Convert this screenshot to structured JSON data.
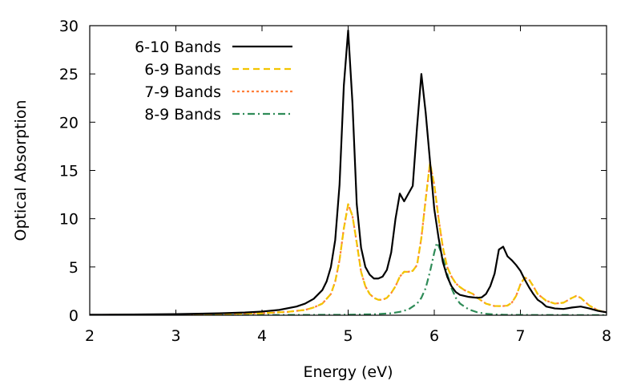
{
  "chart_data": {
    "type": "line",
    "xlabel": "Energy (eV)",
    "ylabel": "Optical Absorption",
    "xlim": [
      2,
      8
    ],
    "ylim": [
      0,
      30
    ],
    "xticks": [
      2,
      3,
      4,
      5,
      6,
      7,
      8
    ],
    "yticks": [
      0,
      5,
      10,
      15,
      20,
      25,
      30
    ],
    "grid": false,
    "legend": "top-left",
    "series": [
      {
        "name": "6-10 Bands",
        "color": "#000000",
        "dash": "solid",
        "x": [
          2.0,
          2.5,
          3.0,
          3.5,
          3.8,
          4.0,
          4.2,
          4.4,
          4.5,
          4.6,
          4.7,
          4.75,
          4.8,
          4.85,
          4.9,
          4.95,
          5.0,
          5.05,
          5.1,
          5.15,
          5.2,
          5.25,
          5.3,
          5.35,
          5.4,
          5.45,
          5.5,
          5.55,
          5.6,
          5.65,
          5.7,
          5.75,
          5.8,
          5.85,
          5.9,
          5.95,
          6.0,
          6.05,
          6.1,
          6.15,
          6.2,
          6.25,
          6.3,
          6.35,
          6.4,
          6.45,
          6.5,
          6.55,
          6.6,
          6.65,
          6.7,
          6.75,
          6.8,
          6.85,
          6.9,
          6.95,
          7.0,
          7.05,
          7.1,
          7.15,
          7.2,
          7.25,
          7.3,
          7.4,
          7.5,
          7.6,
          7.7,
          7.8,
          7.9,
          8.0
        ],
        "y": [
          0.05,
          0.08,
          0.12,
          0.2,
          0.28,
          0.38,
          0.55,
          0.9,
          1.2,
          1.7,
          2.6,
          3.5,
          5.0,
          7.8,
          13.5,
          23.8,
          29.5,
          22.0,
          11.5,
          7.0,
          5.0,
          4.2,
          3.8,
          3.8,
          4.0,
          4.7,
          6.5,
          10.0,
          12.6,
          11.8,
          12.6,
          13.4,
          19.5,
          25.0,
          21.0,
          16.0,
          11.0,
          8.0,
          5.5,
          4.0,
          3.0,
          2.4,
          2.1,
          2.0,
          1.9,
          1.85,
          1.8,
          1.85,
          2.2,
          3.0,
          4.3,
          6.8,
          7.1,
          6.1,
          5.7,
          5.2,
          4.6,
          3.7,
          2.9,
          2.2,
          1.6,
          1.3,
          0.9,
          0.7,
          0.65,
          0.8,
          0.9,
          0.7,
          0.45,
          0.3
        ]
      },
      {
        "name": "6-9 Bands",
        "color": "#f2c400",
        "dash": "dashed",
        "x": [
          2.0,
          2.5,
          3.0,
          3.5,
          4.0,
          4.3,
          4.5,
          4.6,
          4.7,
          4.8,
          4.85,
          4.9,
          4.95,
          5.0,
          5.05,
          5.1,
          5.15,
          5.2,
          5.25,
          5.3,
          5.35,
          5.4,
          5.45,
          5.5,
          5.55,
          5.6,
          5.65,
          5.7,
          5.75,
          5.8,
          5.85,
          5.9,
          5.95,
          6.0,
          6.05,
          6.1,
          6.15,
          6.2,
          6.25,
          6.3,
          6.35,
          6.4,
          6.45,
          6.5,
          6.6,
          6.7,
          6.8,
          6.85,
          6.9,
          6.95,
          7.0,
          7.05,
          7.1,
          7.15,
          7.2,
          7.3,
          7.4,
          7.5,
          7.6,
          7.65,
          7.7,
          7.75,
          7.8,
          7.9,
          8.0
        ],
        "y": [
          0.03,
          0.05,
          0.08,
          0.12,
          0.2,
          0.35,
          0.55,
          0.8,
          1.2,
          2.2,
          3.5,
          5.7,
          9.0,
          11.5,
          10.3,
          7.5,
          4.5,
          3.0,
          2.2,
          1.8,
          1.6,
          1.6,
          1.8,
          2.3,
          3.0,
          4.0,
          4.5,
          4.5,
          4.6,
          5.2,
          8.0,
          12.0,
          15.8,
          13.5,
          10.0,
          7.0,
          5.0,
          4.0,
          3.3,
          2.9,
          2.6,
          2.4,
          2.2,
          1.8,
          1.2,
          0.95,
          0.95,
          1.0,
          1.3,
          2.0,
          3.2,
          3.9,
          3.7,
          3.0,
          2.2,
          1.5,
          1.2,
          1.3,
          1.8,
          2.0,
          1.8,
          1.4,
          1.0,
          0.5,
          0.3
        ]
      },
      {
        "name": "7-9 Bands",
        "color": "#ff7f3a",
        "dash": "dotted",
        "x": [
          2.0,
          2.5,
          3.0,
          3.5,
          4.0,
          4.3,
          4.5,
          4.6,
          4.7,
          4.8,
          4.85,
          4.9,
          4.95,
          5.0,
          5.05,
          5.1,
          5.15,
          5.2,
          5.25,
          5.3,
          5.35,
          5.4,
          5.45,
          5.5,
          5.55,
          5.6,
          5.65,
          5.7,
          5.75,
          5.8,
          5.85,
          5.9,
          5.95,
          6.0,
          6.05,
          6.1,
          6.15,
          6.2,
          6.25,
          6.3,
          6.35,
          6.4,
          6.45,
          6.5,
          6.6,
          6.7,
          6.8,
          6.85,
          6.9,
          6.95,
          7.0,
          7.05,
          7.1,
          7.15,
          7.2,
          7.3,
          7.4,
          7.5,
          7.6,
          7.65,
          7.7,
          7.75,
          7.8,
          7.9,
          8.0
        ],
        "y": [
          0.03,
          0.05,
          0.08,
          0.12,
          0.2,
          0.35,
          0.55,
          0.8,
          1.2,
          2.2,
          3.5,
          5.7,
          9.0,
          11.5,
          10.3,
          7.5,
          4.5,
          3.0,
          2.2,
          1.8,
          1.6,
          1.6,
          1.8,
          2.3,
          3.0,
          4.0,
          4.5,
          4.5,
          4.6,
          5.2,
          8.0,
          12.0,
          15.8,
          13.5,
          10.0,
          7.0,
          5.0,
          4.0,
          3.3,
          2.9,
          2.6,
          2.4,
          2.2,
          1.8,
          1.2,
          0.95,
          0.95,
          1.0,
          1.3,
          2.0,
          3.2,
          3.9,
          3.7,
          3.0,
          2.2,
          1.5,
          1.2,
          1.3,
          1.8,
          2.0,
          1.8,
          1.4,
          1.0,
          0.5,
          0.3
        ]
      },
      {
        "name": "8-9 Bands",
        "color": "#2e8b57",
        "dash": "dashdot",
        "x": [
          2.0,
          3.0,
          4.0,
          5.0,
          5.3,
          5.5,
          5.6,
          5.7,
          5.8,
          5.85,
          5.9,
          5.95,
          6.0,
          6.03,
          6.05,
          6.1,
          6.15,
          6.2,
          6.25,
          6.3,
          6.4,
          6.5,
          6.6,
          6.7,
          6.8,
          7.0,
          7.5,
          8.0
        ],
        "y": [
          0.0,
          0.0,
          0.02,
          0.05,
          0.1,
          0.2,
          0.35,
          0.6,
          1.2,
          1.8,
          2.8,
          4.5,
          6.5,
          7.5,
          7.2,
          6.0,
          4.3,
          2.8,
          1.8,
          1.2,
          0.6,
          0.3,
          0.15,
          0.08,
          0.05,
          0.03,
          0.02,
          0.01
        ]
      }
    ]
  }
}
